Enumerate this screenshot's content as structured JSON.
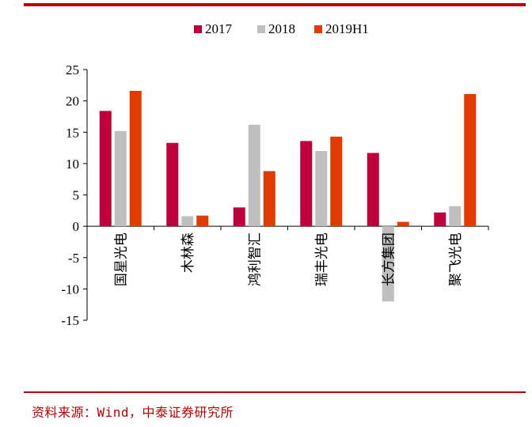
{
  "chart_data": {
    "type": "bar",
    "categories": [
      "国星光电",
      "木林森",
      "鸿利智汇",
      "瑞丰光电",
      "长方集团",
      "聚飞光电"
    ],
    "series": [
      {
        "name": "2017",
        "color": "#c0003c",
        "values": [
          18.4,
          13.3,
          3.0,
          13.6,
          11.7,
          2.2
        ]
      },
      {
        "name": "2018",
        "color": "#bfbfbf",
        "values": [
          15.2,
          1.6,
          16.2,
          12.0,
          -12.0,
          3.2
        ]
      },
      {
        "name": "2019H1",
        "color": "#e23a00",
        "values": [
          21.6,
          1.7,
          8.8,
          14.3,
          0.7,
          21.1
        ]
      }
    ],
    "ylim": [
      -15,
      25
    ],
    "yticks": [
      -15,
      -10,
      -5,
      0,
      5,
      10,
      15,
      20,
      25
    ],
    "legend_position": "top-center",
    "grid": false
  },
  "source": "资料来源：Wind，中泰证券研究所"
}
